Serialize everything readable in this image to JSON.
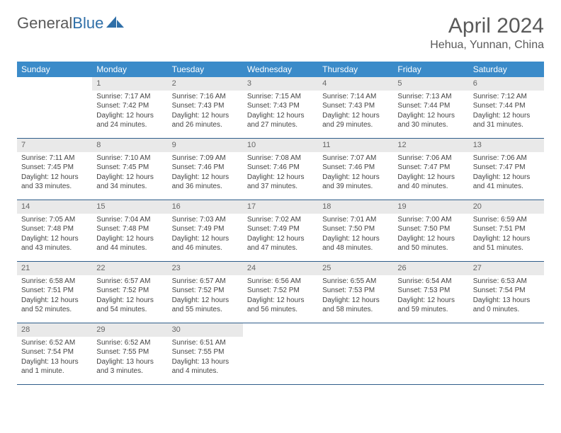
{
  "logo": {
    "text1": "General",
    "text2": "Blue"
  },
  "title": "April 2024",
  "location": "Hehua, Yunnan, China",
  "colors": {
    "header_bg": "#3b8bc9",
    "header_text": "#ffffff",
    "daynum_bg": "#e9e9e9",
    "daynum_text": "#666666",
    "body_text": "#444444",
    "rule": "#2f5d8a",
    "title_text": "#5a5a5a"
  },
  "day_headers": [
    "Sunday",
    "Monday",
    "Tuesday",
    "Wednesday",
    "Thursday",
    "Friday",
    "Saturday"
  ],
  "weeks": [
    [
      null,
      {
        "n": "1",
        "sr": "Sunrise: 7:17 AM",
        "ss": "Sunset: 7:42 PM",
        "d1": "Daylight: 12 hours",
        "d2": "and 24 minutes."
      },
      {
        "n": "2",
        "sr": "Sunrise: 7:16 AM",
        "ss": "Sunset: 7:43 PM",
        "d1": "Daylight: 12 hours",
        "d2": "and 26 minutes."
      },
      {
        "n": "3",
        "sr": "Sunrise: 7:15 AM",
        "ss": "Sunset: 7:43 PM",
        "d1": "Daylight: 12 hours",
        "d2": "and 27 minutes."
      },
      {
        "n": "4",
        "sr": "Sunrise: 7:14 AM",
        "ss": "Sunset: 7:43 PM",
        "d1": "Daylight: 12 hours",
        "d2": "and 29 minutes."
      },
      {
        "n": "5",
        "sr": "Sunrise: 7:13 AM",
        "ss": "Sunset: 7:44 PM",
        "d1": "Daylight: 12 hours",
        "d2": "and 30 minutes."
      },
      {
        "n": "6",
        "sr": "Sunrise: 7:12 AM",
        "ss": "Sunset: 7:44 PM",
        "d1": "Daylight: 12 hours",
        "d2": "and 31 minutes."
      }
    ],
    [
      {
        "n": "7",
        "sr": "Sunrise: 7:11 AM",
        "ss": "Sunset: 7:45 PM",
        "d1": "Daylight: 12 hours",
        "d2": "and 33 minutes."
      },
      {
        "n": "8",
        "sr": "Sunrise: 7:10 AM",
        "ss": "Sunset: 7:45 PM",
        "d1": "Daylight: 12 hours",
        "d2": "and 34 minutes."
      },
      {
        "n": "9",
        "sr": "Sunrise: 7:09 AM",
        "ss": "Sunset: 7:46 PM",
        "d1": "Daylight: 12 hours",
        "d2": "and 36 minutes."
      },
      {
        "n": "10",
        "sr": "Sunrise: 7:08 AM",
        "ss": "Sunset: 7:46 PM",
        "d1": "Daylight: 12 hours",
        "d2": "and 37 minutes."
      },
      {
        "n": "11",
        "sr": "Sunrise: 7:07 AM",
        "ss": "Sunset: 7:46 PM",
        "d1": "Daylight: 12 hours",
        "d2": "and 39 minutes."
      },
      {
        "n": "12",
        "sr": "Sunrise: 7:06 AM",
        "ss": "Sunset: 7:47 PM",
        "d1": "Daylight: 12 hours",
        "d2": "and 40 minutes."
      },
      {
        "n": "13",
        "sr": "Sunrise: 7:06 AM",
        "ss": "Sunset: 7:47 PM",
        "d1": "Daylight: 12 hours",
        "d2": "and 41 minutes."
      }
    ],
    [
      {
        "n": "14",
        "sr": "Sunrise: 7:05 AM",
        "ss": "Sunset: 7:48 PM",
        "d1": "Daylight: 12 hours",
        "d2": "and 43 minutes."
      },
      {
        "n": "15",
        "sr": "Sunrise: 7:04 AM",
        "ss": "Sunset: 7:48 PM",
        "d1": "Daylight: 12 hours",
        "d2": "and 44 minutes."
      },
      {
        "n": "16",
        "sr": "Sunrise: 7:03 AM",
        "ss": "Sunset: 7:49 PM",
        "d1": "Daylight: 12 hours",
        "d2": "and 46 minutes."
      },
      {
        "n": "17",
        "sr": "Sunrise: 7:02 AM",
        "ss": "Sunset: 7:49 PM",
        "d1": "Daylight: 12 hours",
        "d2": "and 47 minutes."
      },
      {
        "n": "18",
        "sr": "Sunrise: 7:01 AM",
        "ss": "Sunset: 7:50 PM",
        "d1": "Daylight: 12 hours",
        "d2": "and 48 minutes."
      },
      {
        "n": "19",
        "sr": "Sunrise: 7:00 AM",
        "ss": "Sunset: 7:50 PM",
        "d1": "Daylight: 12 hours",
        "d2": "and 50 minutes."
      },
      {
        "n": "20",
        "sr": "Sunrise: 6:59 AM",
        "ss": "Sunset: 7:51 PM",
        "d1": "Daylight: 12 hours",
        "d2": "and 51 minutes."
      }
    ],
    [
      {
        "n": "21",
        "sr": "Sunrise: 6:58 AM",
        "ss": "Sunset: 7:51 PM",
        "d1": "Daylight: 12 hours",
        "d2": "and 52 minutes."
      },
      {
        "n": "22",
        "sr": "Sunrise: 6:57 AM",
        "ss": "Sunset: 7:52 PM",
        "d1": "Daylight: 12 hours",
        "d2": "and 54 minutes."
      },
      {
        "n": "23",
        "sr": "Sunrise: 6:57 AM",
        "ss": "Sunset: 7:52 PM",
        "d1": "Daylight: 12 hours",
        "d2": "and 55 minutes."
      },
      {
        "n": "24",
        "sr": "Sunrise: 6:56 AM",
        "ss": "Sunset: 7:52 PM",
        "d1": "Daylight: 12 hours",
        "d2": "and 56 minutes."
      },
      {
        "n": "25",
        "sr": "Sunrise: 6:55 AM",
        "ss": "Sunset: 7:53 PM",
        "d1": "Daylight: 12 hours",
        "d2": "and 58 minutes."
      },
      {
        "n": "26",
        "sr": "Sunrise: 6:54 AM",
        "ss": "Sunset: 7:53 PM",
        "d1": "Daylight: 12 hours",
        "d2": "and 59 minutes."
      },
      {
        "n": "27",
        "sr": "Sunrise: 6:53 AM",
        "ss": "Sunset: 7:54 PM",
        "d1": "Daylight: 13 hours",
        "d2": "and 0 minutes."
      }
    ],
    [
      {
        "n": "28",
        "sr": "Sunrise: 6:52 AM",
        "ss": "Sunset: 7:54 PM",
        "d1": "Daylight: 13 hours",
        "d2": "and 1 minute."
      },
      {
        "n": "29",
        "sr": "Sunrise: 6:52 AM",
        "ss": "Sunset: 7:55 PM",
        "d1": "Daylight: 13 hours",
        "d2": "and 3 minutes."
      },
      {
        "n": "30",
        "sr": "Sunrise: 6:51 AM",
        "ss": "Sunset: 7:55 PM",
        "d1": "Daylight: 13 hours",
        "d2": "and 4 minutes."
      },
      null,
      null,
      null,
      null
    ]
  ]
}
